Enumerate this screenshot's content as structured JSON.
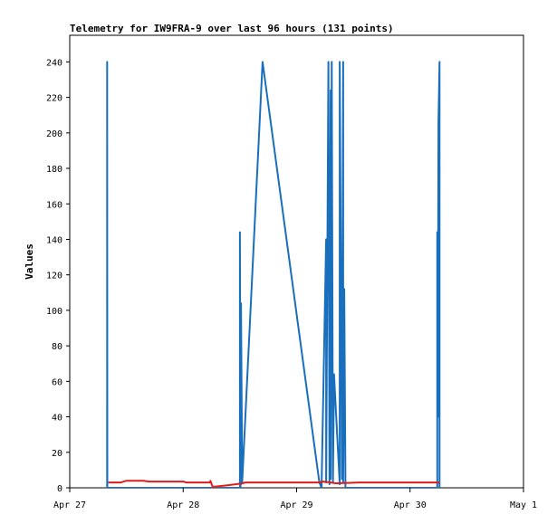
{
  "chart_data": {
    "type": "line",
    "title": "Telemetry for IW9FRA-9 over last 96 hours (131 points)",
    "xlabel": "",
    "ylabel": "Values",
    "x_ticks": [
      "Apr 27",
      "Apr 28",
      "Apr 29",
      "Apr 30",
      "May 1"
    ],
    "x_unit": "days since Apr 27 00:00",
    "xlim": [
      0,
      4
    ],
    "ylim": [
      0,
      255
    ],
    "y_ticks": [
      0,
      20,
      40,
      60,
      80,
      100,
      120,
      140,
      160,
      180,
      200,
      220,
      240
    ],
    "grid": false,
    "legend": "none",
    "series": [
      {
        "color": "#1a6fbd",
        "x": [
          0.33,
          0.33,
          0.331,
          1.5,
          1.5,
          1.505,
          1.505,
          1.51,
          1.51,
          1.52,
          1.7,
          2.2,
          2.22,
          2.22,
          2.26,
          2.26,
          2.28,
          2.29,
          2.3,
          2.3,
          2.31,
          2.32,
          2.33,
          2.38,
          2.38,
          2.4,
          2.41,
          2.41,
          2.42,
          2.43,
          2.43,
          3.24,
          3.24,
          3.245,
          3.25,
          3.25,
          3.26,
          3.26
        ],
        "y": [
          0,
          240,
          0,
          0,
          144,
          0,
          64,
          2,
          104,
          3,
          240,
          3,
          0,
          2,
          140,
          3,
          240,
          2,
          224,
          5,
          240,
          3,
          64,
          2,
          240,
          5,
          240,
          3,
          112,
          4,
          0,
          0,
          144,
          40,
          200,
          205,
          240,
          0
        ]
      },
      {
        "color": "#e01b1b",
        "x": [
          0.34,
          0.45,
          0.5,
          0.65,
          0.7,
          1.0,
          1.03,
          1.24,
          1.24,
          1.26,
          1.4,
          1.52,
          1.55,
          2.2,
          2.23,
          2.3,
          2.35,
          2.55,
          2.9,
          3.0,
          3.26
        ],
        "y": [
          3,
          3,
          4,
          4,
          3.5,
          3.5,
          3,
          3,
          4,
          0.5,
          1.5,
          2.5,
          3,
          3,
          3.5,
          3,
          2.5,
          3,
          3,
          3,
          3
        ]
      }
    ]
  }
}
